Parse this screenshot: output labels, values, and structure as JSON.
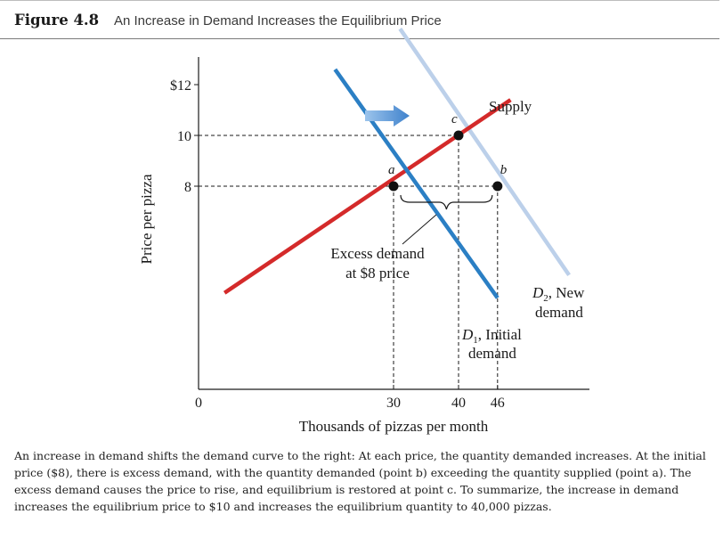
{
  "figure": {
    "number": "Figure 4.8",
    "title": "An Increase in Demand Increases the Equilibrium Price"
  },
  "chart_data": {
    "type": "line",
    "title": "An Increase in Demand Increases the Equilibrium Price",
    "xlabel": "Thousands of pizzas per month",
    "ylabel": "Price per pizza",
    "xlim": [
      0,
      58
    ],
    "ylim": [
      0,
      13.5
    ],
    "x_ticks": [
      {
        "value": 0,
        "label": "0"
      },
      {
        "value": 30,
        "label": "30"
      },
      {
        "value": 40,
        "label": "40"
      },
      {
        "value": 46,
        "label": "46"
      }
    ],
    "y_ticks": [
      {
        "value": 8,
        "label": "8"
      },
      {
        "value": 10,
        "label": "10"
      },
      {
        "value": 12,
        "label": "$12"
      }
    ],
    "series": [
      {
        "name": "Supply",
        "color": "#d42a2a",
        "points": [
          [
            4,
            3.8
          ],
          [
            48,
            11.4
          ]
        ]
      },
      {
        "name": "D1, Initial demand",
        "color": "#2b7fc4",
        "points": [
          [
            21,
            12.6
          ],
          [
            46,
            3.6
          ]
        ]
      },
      {
        "name": "D2, New demand",
        "color": "#bcd0ea",
        "points": [
          [
            31,
            14.2
          ],
          [
            57,
            4.5
          ]
        ]
      }
    ],
    "points": [
      {
        "label": "a",
        "x": 30,
        "y": 8
      },
      {
        "label": "b",
        "x": 46,
        "y": 8
      },
      {
        "label": "c",
        "x": 40,
        "y": 10
      }
    ],
    "guides": [
      {
        "type": "h",
        "y": 10,
        "x_from": 0,
        "x_to": 40
      },
      {
        "type": "h",
        "y": 8,
        "x_from": 0,
        "x_to": 46
      },
      {
        "type": "v",
        "x": 30,
        "y_from": 0,
        "y_to": 8
      },
      {
        "type": "v",
        "x": 40,
        "y_from": 0,
        "y_to": 10
      },
      {
        "type": "v",
        "x": 46,
        "y_from": 0,
        "y_to": 8
      }
    ],
    "bracket": {
      "x_from": 30,
      "x_to": 46,
      "y": 8
    },
    "shift_arrow_color": "#4f92d4",
    "labels": {
      "supply": "Supply",
      "d1_main": "D",
      "d1_sub": "1",
      "d1_rest": ", Initial",
      "d1_line2": "demand",
      "d2_main": "D",
      "d2_sub": "2",
      "d2_rest": ", New",
      "d2_line2": "demand",
      "excess_line1": "Excess demand",
      "excess_line2": "at $8 price"
    }
  },
  "caption": "An increase in demand shifts the demand curve to the right: At each price, the quantity demanded increases. At the initial price ($8), there is excess demand, with the quantity demanded (point b) exceeding the quantity supplied (point a). The excess demand causes the price to rise, and equilibrium is restored at point c. To summarize, the increase in demand increases the equilibrium price to $10 and increases the equilibrium quantity to 40,000 pizzas."
}
